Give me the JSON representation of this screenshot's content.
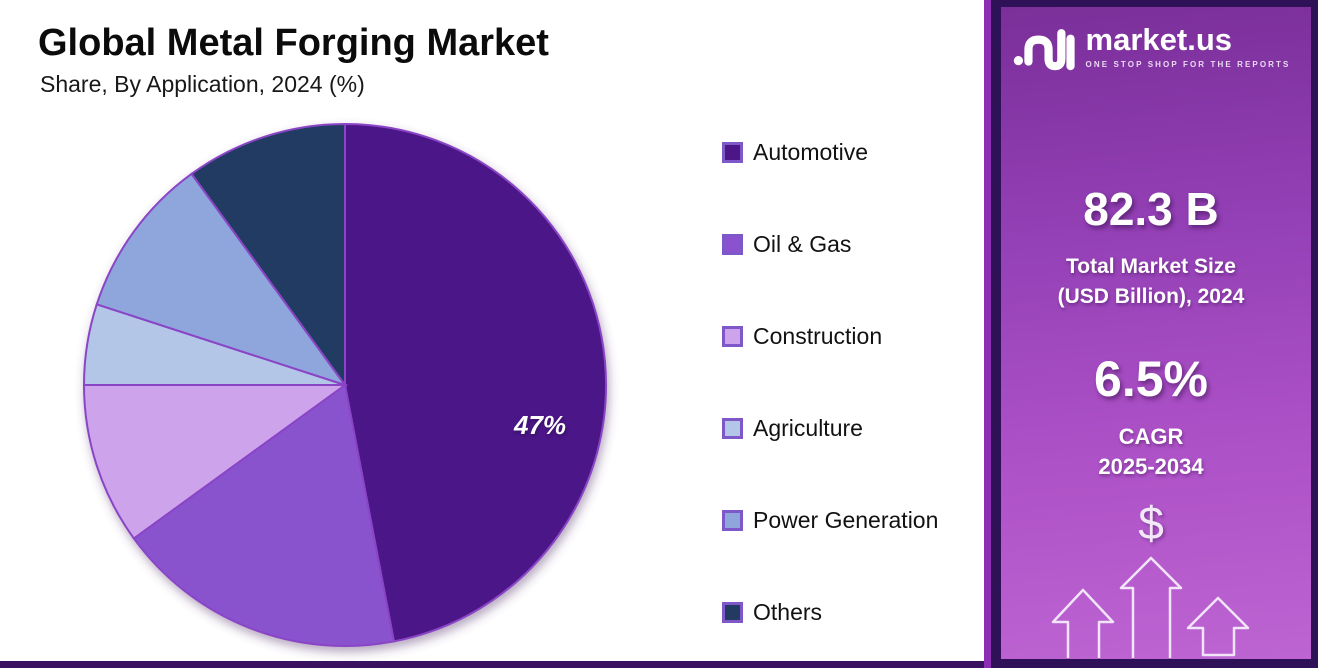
{
  "header": {
    "title": "Global Metal Forging Market",
    "subtitle": "Share, By Application, 2024 (%)"
  },
  "chart_data": {
    "type": "pie",
    "title": "Global Metal Forging Market",
    "subtitle": "Share, By Application, 2024 (%)",
    "unit": "%",
    "start_angle_deg": 0,
    "direction": "clockwise",
    "legend_position": "right",
    "slice_border_color": "#8A45C6",
    "slices": [
      {
        "label": "Automotive",
        "value": 47,
        "color": "#4C1687"
      },
      {
        "label": "Oil & Gas",
        "value": 18,
        "color": "#8A52CE"
      },
      {
        "label": "Construction",
        "value": 10,
        "color": "#CDA4EB"
      },
      {
        "label": "Agriculture",
        "value": 5,
        "color": "#B3C6E7"
      },
      {
        "label": "Power Generation",
        "value": 10,
        "color": "#8FA6DC"
      },
      {
        "label": "Others",
        "value": 10,
        "color": "#233A63"
      }
    ],
    "annotations": [
      {
        "slice": "Automotive",
        "text": "47%"
      }
    ]
  },
  "sidebar": {
    "logo": {
      "brand": "market.us",
      "tagline": "ONE STOP SHOP FOR THE REPORTS"
    },
    "market_size": {
      "value": "82.3 B",
      "label_line1": "Total Market Size",
      "label_line2": "(USD Billion), 2024"
    },
    "cagr": {
      "value": "6.5%",
      "label_line1": "CAGR",
      "label_line2": "2025-2034"
    },
    "dollar_icon": "$",
    "colors": {
      "panel_gradient_top": "#7A2F99",
      "panel_gradient_bottom": "#BD64D2",
      "panel_border": "#2E1157",
      "accent_stripe": "#8B2EB4",
      "bottom_bar": "#3A125F",
      "arrow_outline": "#F2E4F9"
    }
  }
}
